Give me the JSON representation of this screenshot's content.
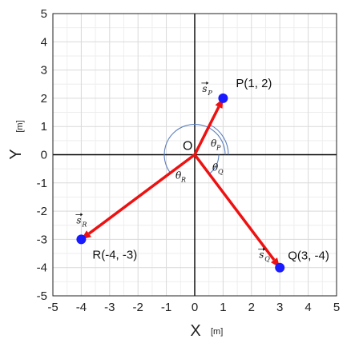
{
  "chart_data": {
    "type": "scatter",
    "title": "",
    "xlabel": "X",
    "ylabel": "Y",
    "x_unit": "[m]",
    "y_unit": "[m]",
    "xlim": [
      -5,
      5
    ],
    "ylim": [
      -5,
      5
    ],
    "x_ticks": [
      -5,
      -4,
      -3,
      -2,
      -1,
      0,
      1,
      2,
      3,
      4,
      5
    ],
    "y_ticks": [
      -5,
      -4,
      -3,
      -2,
      -1,
      0,
      1,
      2,
      3,
      4,
      5
    ],
    "grid": true,
    "minor_grid": true,
    "origin": {
      "label": "O",
      "x": 0,
      "y": 0
    },
    "points": [
      {
        "id": "P",
        "label": "P(1, 2)",
        "x": 1,
        "y": 2,
        "vector": "s",
        "vector_sub": "P",
        "angle": "θ",
        "angle_sub": "P"
      },
      {
        "id": "Q",
        "label": "Q(3, -4)",
        "x": 3,
        "y": -4,
        "vector": "s",
        "vector_sub": "Q",
        "angle": "θ",
        "angle_sub": "Q"
      },
      {
        "id": "R",
        "label": "R(-4, -3)",
        "x": -4,
        "y": -3,
        "vector": "s",
        "vector_sub": "R",
        "angle": "θ",
        "angle_sub": "R"
      }
    ],
    "colors": {
      "vector": "#ee1111",
      "point": "#1a1aff",
      "arc": "#5b7fbf",
      "grid": "#d9d9d9",
      "axis": "#000000"
    }
  }
}
